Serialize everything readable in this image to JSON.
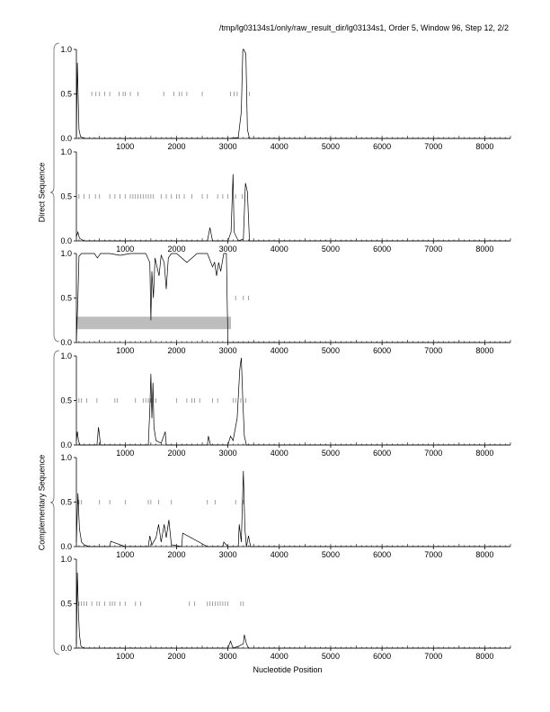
{
  "header": {
    "title": "/tmp/lg03134s1/only/raw_result_dir/lg03134s1, Order 5, Window 96, Step 12, 2/2"
  },
  "group_labels": {
    "direct": "Direct Sequence",
    "complementary": "Complementary Sequence"
  },
  "x_axis_label": "Nucleotide Position",
  "colors": {
    "line": "#000000",
    "tick_marks": "#888888",
    "highlight_band": "#bdbdbd"
  },
  "chart_data": [
    {
      "type": "line",
      "panel": 1,
      "strand": "direct",
      "xlim": [
        50,
        8500
      ],
      "ylim": [
        0,
        1
      ],
      "xticks": [
        1000,
        2000,
        3000,
        4000,
        5000,
        6000,
        7000,
        8000
      ],
      "yticks": [
        "0.0",
        "0.5",
        "1.0"
      ],
      "x": [
        50,
        70,
        85,
        100,
        130,
        200,
        1000,
        2000,
        3000,
        3200,
        3260,
        3290,
        3310,
        3350,
        3380,
        3420,
        4000,
        8500
      ],
      "y": [
        0.02,
        0.85,
        0.45,
        0.1,
        0.02,
        0,
        0,
        0,
        0,
        0.01,
        0.3,
        1.0,
        1.0,
        0.95,
        0.1,
        0,
        0,
        0
      ],
      "marker_y": 0.5,
      "markers": [
        350,
        430,
        500,
        600,
        700,
        880,
        960,
        1000,
        1100,
        1250,
        1750,
        1950,
        2050,
        2100,
        2200,
        2500,
        3050,
        3120,
        3180,
        3420
      ]
    },
    {
      "type": "line",
      "panel": 2,
      "strand": "direct",
      "xlim": [
        50,
        8500
      ],
      "ylim": [
        0,
        1
      ],
      "xticks": [
        1000,
        2000,
        3000,
        4000,
        5000,
        6000,
        7000,
        8000
      ],
      "yticks": [
        "0.0",
        "0.5",
        "1.0"
      ],
      "x": [
        50,
        80,
        110,
        200,
        1000,
        2000,
        2600,
        2650,
        2700,
        3000,
        3060,
        3100,
        3120,
        3200,
        3300,
        3340,
        3380,
        3420,
        4000,
        8500
      ],
      "y": [
        0.05,
        0.1,
        0.03,
        0,
        0,
        0,
        0,
        0.15,
        0,
        0,
        0.1,
        0.75,
        0.1,
        0,
        0.02,
        0.65,
        0.55,
        0,
        0,
        0
      ],
      "marker_y": 0.5,
      "markers": [
        100,
        200,
        300,
        420,
        500,
        700,
        800,
        900,
        1000,
        1100,
        1150,
        1200,
        1250,
        1300,
        1350,
        1400,
        1450,
        1500,
        1550,
        1700,
        1800,
        1900,
        2000,
        2050,
        2150,
        2300,
        2500,
        2600,
        2800,
        2900,
        3000,
        3150,
        3280
      ]
    },
    {
      "type": "line",
      "panel": 3,
      "strand": "direct",
      "xlim": [
        50,
        8500
      ],
      "ylim": [
        0,
        1
      ],
      "xticks": [
        1000,
        2000,
        3000,
        4000,
        5000,
        6000,
        7000,
        8000
      ],
      "yticks": [
        "0.0",
        "0.5",
        "1.0"
      ],
      "x": [
        50,
        80,
        100,
        150,
        400,
        460,
        520,
        700,
        900,
        1100,
        1400,
        1480,
        1500,
        1520,
        1550,
        1580,
        1620,
        1660,
        1700,
        1760,
        1800,
        1840,
        1900,
        2000,
        2200,
        2400,
        2600,
        2700,
        2740,
        2780,
        2820,
        2860,
        2920,
        2970,
        3000,
        3200,
        4000,
        8500
      ],
      "y": [
        0.02,
        0.5,
        0.97,
        1.0,
        1.0,
        0.95,
        1.0,
        1.0,
        0.98,
        1.0,
        1.0,
        0.9,
        0.25,
        0.8,
        0.5,
        0.95,
        0.85,
        0.75,
        0.98,
        0.9,
        0.6,
        0.95,
        1.0,
        1.0,
        0.9,
        1.0,
        1.0,
        0.85,
        0.9,
        0.75,
        0.9,
        0.8,
        1.0,
        1.0,
        0.0,
        0,
        0,
        0
      ],
      "marker_y": 0.5,
      "markers": [
        3150,
        3300,
        3400
      ],
      "band": {
        "x0": 50,
        "x1": 3060,
        "y0": 0.15,
        "y1": 0.29
      }
    },
    {
      "type": "line",
      "panel": 4,
      "strand": "complementary",
      "xlim": [
        50,
        8500
      ],
      "ylim": [
        0,
        1
      ],
      "xticks": [
        1000,
        2000,
        3000,
        4000,
        5000,
        6000,
        7000,
        8000
      ],
      "yticks": [
        "0.0",
        "0.5",
        "1.0"
      ],
      "x": [
        50,
        70,
        90,
        120,
        300,
        450,
        480,
        520,
        1000,
        1450,
        1480,
        1500,
        1520,
        1540,
        1560,
        1600,
        1700,
        1780,
        1800,
        1900,
        2600,
        2620,
        2660,
        3000,
        3050,
        3100,
        3180,
        3230,
        3260,
        3290,
        3320,
        3360,
        4000,
        8500
      ],
      "y": [
        0.05,
        0.15,
        0.05,
        0,
        0,
        0,
        0.2,
        0,
        0,
        0,
        0.4,
        0.8,
        0.3,
        0.7,
        0.2,
        0.05,
        0.02,
        0.15,
        0,
        0,
        0,
        0.1,
        0,
        0,
        0.1,
        0.05,
        0.3,
        0.85,
        0.98,
        0.5,
        0.1,
        0,
        0,
        0
      ],
      "marker_y": 0.5,
      "markers": [
        100,
        150,
        250,
        450,
        800,
        850,
        1200,
        1350,
        1400,
        1450,
        1500,
        1550,
        1600,
        2000,
        2200,
        2300,
        2350,
        2450,
        2700,
        2800,
        3100,
        3150,
        3250,
        3350
      ]
    },
    {
      "type": "line",
      "panel": 5,
      "strand": "complementary",
      "xlim": [
        50,
        8500
      ],
      "ylim": [
        0,
        1
      ],
      "xticks": [
        1000,
        2000,
        3000,
        4000,
        5000,
        6000,
        7000,
        8000
      ],
      "yticks": [
        "0.0",
        "0.5",
        "1.0"
      ],
      "x": [
        50,
        80,
        110,
        150,
        200,
        300,
        700,
        720,
        1000,
        1450,
        1480,
        1520,
        1600,
        1650,
        1700,
        1760,
        1800,
        1850,
        1900,
        2100,
        2120,
        2600,
        2900,
        2920,
        3000,
        3200,
        3220,
        3260,
        3300,
        3330,
        3360,
        3400,
        3440,
        4000,
        8500
      ],
      "y": [
        0.05,
        0.6,
        0.2,
        0.05,
        0.02,
        0,
        0,
        0.06,
        0,
        0,
        0.12,
        0.02,
        0.1,
        0.25,
        0.05,
        0.25,
        0.1,
        0.3,
        0.02,
        0,
        0.15,
        0,
        0,
        0.05,
        0,
        0,
        0.25,
        0.05,
        0.85,
        0.2,
        0,
        0.12,
        0,
        0,
        0
      ],
      "marker_y": 0.5,
      "markers": [
        100,
        150,
        500,
        700,
        1000,
        1450,
        1500,
        1650,
        1900,
        2600,
        2750,
        3150,
        3300
      ]
    },
    {
      "type": "line",
      "panel": 6,
      "strand": "complementary",
      "xlim": [
        50,
        8500
      ],
      "ylim": [
        0,
        1
      ],
      "xticks": [
        1000,
        2000,
        3000,
        4000,
        5000,
        6000,
        7000,
        8000
      ],
      "yticks": [
        "0.0",
        "0.5",
        "1.0"
      ],
      "x": [
        50,
        70,
        90,
        110,
        140,
        200,
        1000,
        2000,
        2800,
        3000,
        3050,
        3100,
        3200,
        3300,
        3320,
        3360,
        3400,
        4000,
        8500
      ],
      "y": [
        0.05,
        0.85,
        0.4,
        0.15,
        0.02,
        0,
        0,
        0,
        0,
        0,
        0.08,
        0,
        0.02,
        0.05,
        0.15,
        0.05,
        0,
        0,
        0
      ],
      "marker_y": 0.5,
      "markers": [
        100,
        150,
        200,
        250,
        350,
        450,
        500,
        600,
        700,
        750,
        800,
        900,
        1000,
        1200,
        1300,
        2250,
        2350,
        2600,
        2650,
        2700,
        2750,
        2800,
        2850,
        2900,
        2950,
        3000,
        3250,
        3300
      ]
    }
  ]
}
